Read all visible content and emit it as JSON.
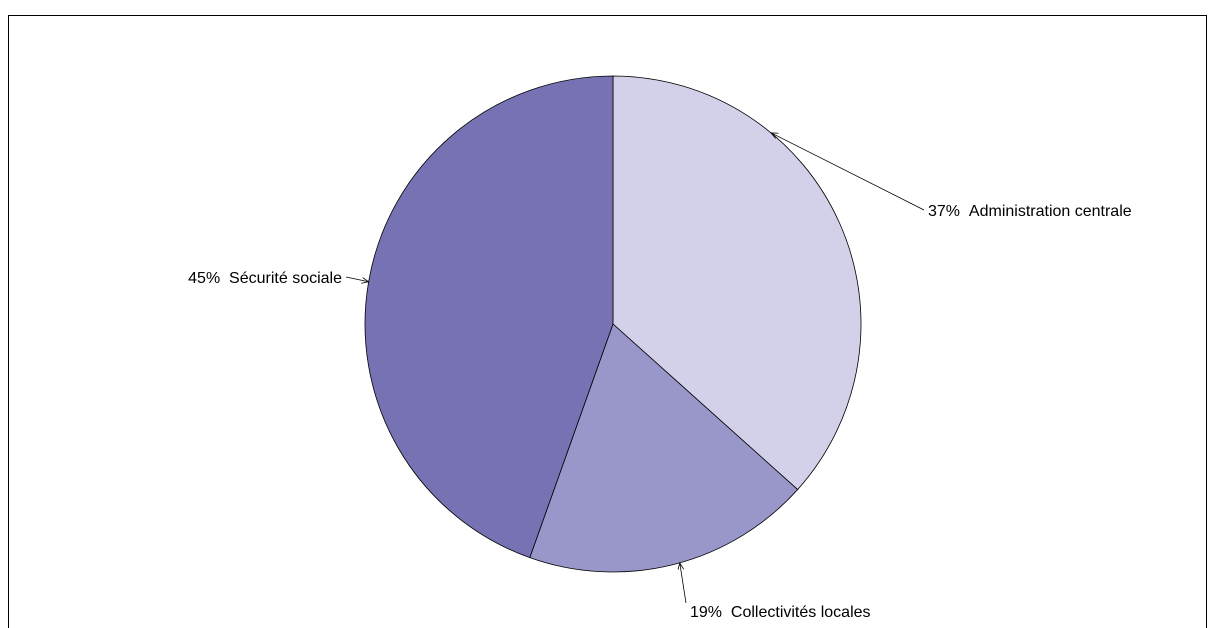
{
  "chart_data": {
    "type": "pie",
    "slices": [
      {
        "label": "Administration centrale",
        "value": 37,
        "value_text": "37%",
        "color": "#d3d1ea"
      },
      {
        "label": "Collectivités locales",
        "value": 19,
        "value_text": "19%",
        "color": "#9997c9"
      },
      {
        "label": "Sécurité sociale",
        "value": 45,
        "value_text": "45%",
        "color": "#7672b4"
      }
    ],
    "start_angle_deg": 0,
    "direction": "clockwise",
    "legend": "none",
    "labels": "outside with leader lines"
  }
}
